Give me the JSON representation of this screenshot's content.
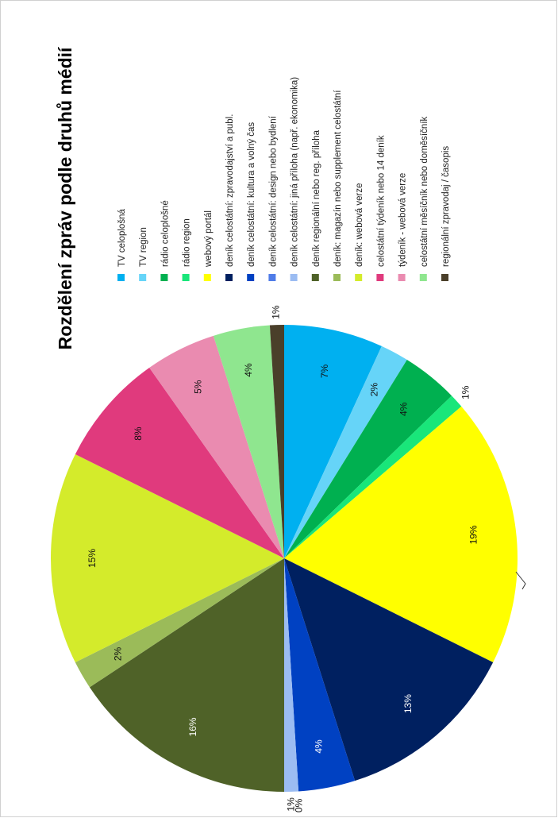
{
  "chart_data": {
    "type": "pie",
    "title": "Rozdělení zpráv podle druhů médií",
    "categories": [
      "TV celoplošná",
      "TV region",
      "rádio celoplošné",
      "rádio region",
      "webový portál",
      "deník celostátní: zpravodajství a publ.",
      "deník celostátní: kultura a volný čas",
      "deník celostátní: design nebo bydlení",
      "deník celostátní: jiná příloha  (např. ekonomika)",
      "deník regionální nebo reg. příloha",
      "deník: magazín nebo supplement celostátní",
      "deník: webová verze",
      "celostátní týdeník nebo 14 deník",
      "týdeník - webová verze",
      "celostátní měsíčník nebo doměsíčník",
      "regionální zpravodaj / časopis"
    ],
    "values": [
      7,
      2,
      4,
      1,
      19,
      13,
      4,
      0,
      1,
      16,
      2,
      15,
      8,
      5,
      4,
      1
    ],
    "labels": [
      "7%",
      "2%",
      "4%",
      "1%",
      "19%",
      "13%",
      "4%",
      "0%",
      "1%",
      "16%",
      "2%",
      "15%",
      "8%",
      "5%",
      "4%",
      "1%"
    ],
    "colors": [
      "#00b0f0",
      "#66d4f8",
      "#00b050",
      "#19e67a",
      "#ffff00",
      "#002060",
      "#0041c2",
      "#4f7ce8",
      "#9bbcf2",
      "#4f6228",
      "#9bbb59",
      "#d4eb2b",
      "#e03a7d",
      "#ea8bb0",
      "#8fe68f",
      "#4a3f2a"
    ],
    "legend_position": "top",
    "orientation": "rotated 90° counter-clockwise"
  }
}
